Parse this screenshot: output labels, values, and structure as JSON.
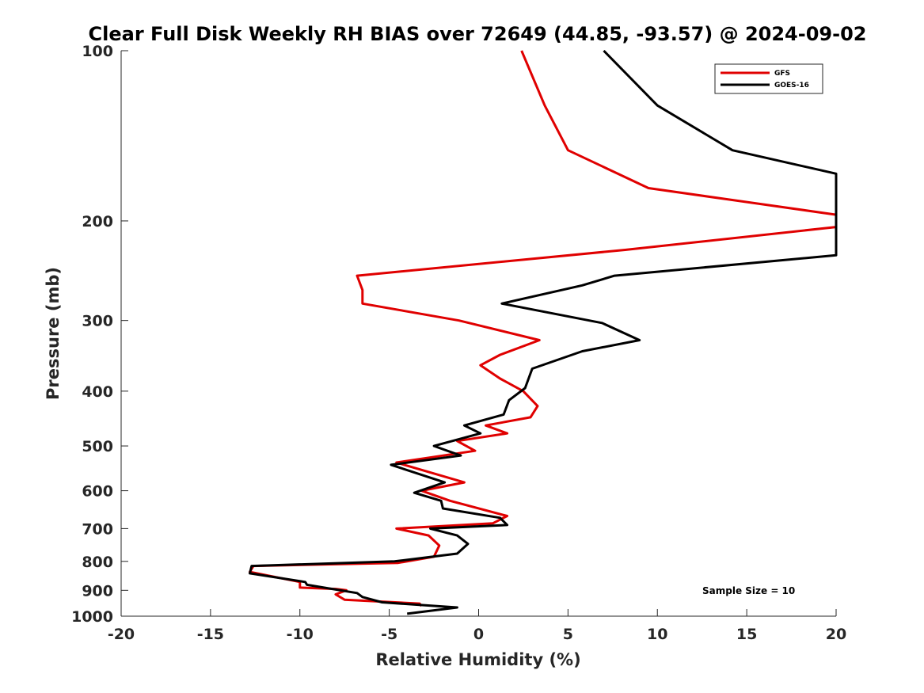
{
  "chart_data": {
    "type": "line",
    "title": "Clear Full Disk Weekly RH BIAS over 72649 (44.85, -93.57) @ 2024-09-02",
    "xlabel": "Relative Humidity (%)",
    "ylabel": "Pressure (mb)",
    "xlim": [
      -20,
      20
    ],
    "ylim": [
      100,
      1000
    ],
    "y_scale": "log",
    "y_reversed": true,
    "x_ticks": [
      "-20",
      "-15",
      "-10",
      "-5",
      "0",
      "5",
      "10",
      "15",
      "20"
    ],
    "y_ticks": [
      "100",
      "200",
      "300",
      "400",
      "500",
      "600",
      "700",
      "800",
      "900",
      "1000"
    ],
    "grid": false,
    "legend_position": "top-right",
    "annotation": "Sample Size = 10",
    "series": [
      {
        "name": "GFS",
        "color": "#e00000",
        "points": [
          {
            "x": 2.4,
            "y": 100
          },
          {
            "x": 3.7,
            "y": 125
          },
          {
            "x": 5.0,
            "y": 150
          },
          {
            "x": 9.5,
            "y": 175
          },
          {
            "x": 20.0,
            "y": 195
          },
          {
            "x": 20.0,
            "y": 205
          },
          {
            "x": 8.2,
            "y": 225
          },
          {
            "x": -6.8,
            "y": 250
          },
          {
            "x": -6.5,
            "y": 265
          },
          {
            "x": -6.5,
            "y": 280
          },
          {
            "x": -1.1,
            "y": 300
          },
          {
            "x": 3.4,
            "y": 325
          },
          {
            "x": 1.2,
            "y": 345
          },
          {
            "x": 0.1,
            "y": 360
          },
          {
            "x": 1.2,
            "y": 380
          },
          {
            "x": 2.5,
            "y": 400
          },
          {
            "x": 3.3,
            "y": 425
          },
          {
            "x": 2.9,
            "y": 445
          },
          {
            "x": 0.4,
            "y": 460
          },
          {
            "x": 1.6,
            "y": 475
          },
          {
            "x": -1.2,
            "y": 490
          },
          {
            "x": -0.2,
            "y": 510
          },
          {
            "x": -4.6,
            "y": 535
          },
          {
            "x": -0.8,
            "y": 580
          },
          {
            "x": -3.2,
            "y": 600
          },
          {
            "x": -1.6,
            "y": 625
          },
          {
            "x": 1.6,
            "y": 665
          },
          {
            "x": 0.8,
            "y": 685
          },
          {
            "x": -4.6,
            "y": 700
          },
          {
            "x": -2.8,
            "y": 720
          },
          {
            "x": -2.2,
            "y": 750
          },
          {
            "x": -2.5,
            "y": 785
          },
          {
            "x": -4.5,
            "y": 805
          },
          {
            "x": -12.6,
            "y": 815
          },
          {
            "x": -12.8,
            "y": 835
          },
          {
            "x": -10.0,
            "y": 870
          },
          {
            "x": -10.0,
            "y": 890
          },
          {
            "x": -8.0,
            "y": 895
          },
          {
            "x": -7.4,
            "y": 900
          },
          {
            "x": -8.0,
            "y": 915
          },
          {
            "x": -7.5,
            "y": 935
          },
          {
            "x": -3.3,
            "y": 950
          },
          {
            "x": -3.2,
            "y": 960
          }
        ]
      },
      {
        "name": "GOES-16",
        "color": "#000000",
        "points": [
          {
            "x": 7.0,
            "y": 100
          },
          {
            "x": 10.0,
            "y": 125
          },
          {
            "x": 14.2,
            "y": 150
          },
          {
            "x": 20.0,
            "y": 165
          },
          {
            "x": 20.0,
            "y": 230
          },
          {
            "x": 7.6,
            "y": 250
          },
          {
            "x": 5.8,
            "y": 260
          },
          {
            "x": 1.3,
            "y": 280
          },
          {
            "x": 6.9,
            "y": 303
          },
          {
            "x": 9.0,
            "y": 325
          },
          {
            "x": 5.8,
            "y": 340
          },
          {
            "x": 3.0,
            "y": 365
          },
          {
            "x": 2.6,
            "y": 395
          },
          {
            "x": 1.7,
            "y": 415
          },
          {
            "x": 1.4,
            "y": 440
          },
          {
            "x": -0.8,
            "y": 460
          },
          {
            "x": 0.1,
            "y": 475
          },
          {
            "x": -2.5,
            "y": 500
          },
          {
            "x": -1.0,
            "y": 520
          },
          {
            "x": -4.9,
            "y": 540
          },
          {
            "x": -1.9,
            "y": 580
          },
          {
            "x": -3.6,
            "y": 605
          },
          {
            "x": -2.1,
            "y": 625
          },
          {
            "x": -2.0,
            "y": 645
          },
          {
            "x": 1.2,
            "y": 670
          },
          {
            "x": 1.6,
            "y": 690
          },
          {
            "x": -2.7,
            "y": 700
          },
          {
            "x": -1.2,
            "y": 720
          },
          {
            "x": -0.6,
            "y": 745
          },
          {
            "x": -1.2,
            "y": 775
          },
          {
            "x": -4.7,
            "y": 800
          },
          {
            "x": -12.7,
            "y": 815
          },
          {
            "x": -12.8,
            "y": 840
          },
          {
            "x": -9.7,
            "y": 870
          },
          {
            "x": -9.6,
            "y": 880
          },
          {
            "x": -6.8,
            "y": 910
          },
          {
            "x": -6.5,
            "y": 925
          },
          {
            "x": -5.4,
            "y": 945
          },
          {
            "x": -1.2,
            "y": 965
          },
          {
            "x": -4.0,
            "y": 990
          }
        ]
      }
    ]
  }
}
